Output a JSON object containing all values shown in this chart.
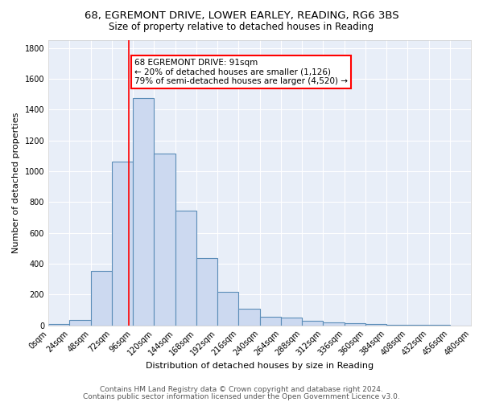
{
  "title1": "68, EGREMONT DRIVE, LOWER EARLEY, READING, RG6 3BS",
  "title2": "Size of property relative to detached houses in Reading",
  "xlabel": "Distribution of detached houses by size in Reading",
  "ylabel": "Number of detached properties",
  "bin_edges": [
    0,
    24,
    48,
    72,
    96,
    120,
    144,
    168,
    192,
    216,
    240,
    264,
    288,
    312,
    336,
    360,
    384,
    408,
    432,
    456,
    480
  ],
  "bar_heights": [
    10,
    35,
    355,
    1060,
    1475,
    1115,
    745,
    435,
    220,
    110,
    55,
    50,
    30,
    18,
    12,
    8,
    5,
    3,
    2,
    1
  ],
  "bar_facecolor": "#ccd9f0",
  "bar_edgecolor": "#5b8db8",
  "bar_linewidth": 0.8,
  "background_color": "#e8eef8",
  "grid_color": "#ffffff",
  "red_line_x": 91,
  "annotation_text": "68 EGREMONT DRIVE: 91sqm\n← 20% of detached houses are smaller (1,126)\n79% of semi-detached houses are larger (4,520) →",
  "annotation_box_color": "white",
  "annotation_box_edgecolor": "red",
  "ylim": [
    0,
    1850
  ],
  "yticks": [
    0,
    200,
    400,
    600,
    800,
    1000,
    1200,
    1400,
    1600,
    1800
  ],
  "footer1": "Contains HM Land Registry data © Crown copyright and database right 2024.",
  "footer2": "Contains public sector information licensed under the Open Government Licence v3.0.",
  "title1_fontsize": 9.5,
  "title2_fontsize": 8.5,
  "xlabel_fontsize": 8,
  "ylabel_fontsize": 8,
  "tick_fontsize": 7,
  "annotation_fontsize": 7.5,
  "footer_fontsize": 6.5
}
